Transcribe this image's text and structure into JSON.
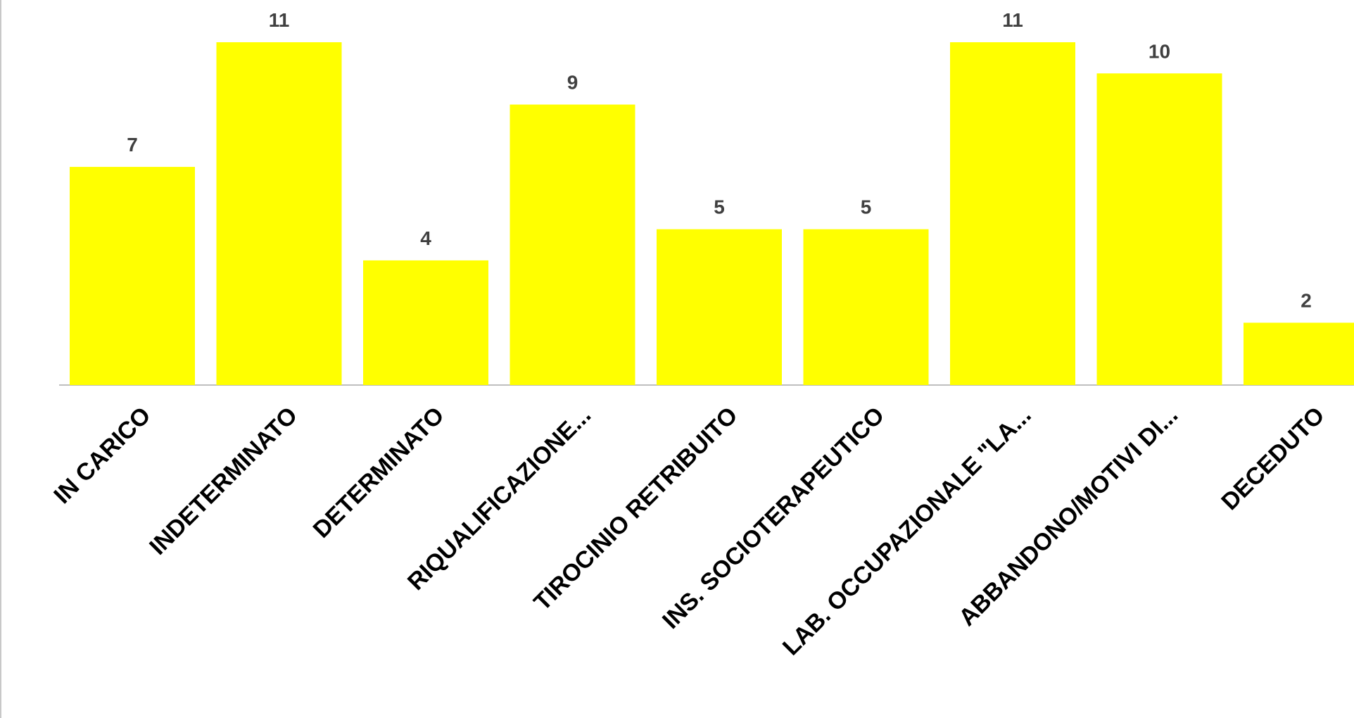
{
  "chart_data": {
    "type": "bar",
    "categories": [
      "IN CARICO",
      "INDETERMINATO",
      "DETERMINATO",
      "RIQUALIFICAZIONE...",
      "TIROCINIO RETRIBUITO",
      "INS. SOCIOTERAPEUTICO",
      "LAB. OCCUPAZIONALE \"LA...",
      "ABBANDONO/MOTIVI DI...",
      "DECEDUTO"
    ],
    "values": [
      7,
      11,
      4,
      9,
      5,
      5,
      11,
      10,
      2
    ],
    "title": "",
    "xlabel": "",
    "ylabel": "",
    "ylim": [
      0,
      11
    ],
    "grid": false,
    "legend": "none",
    "colors": {
      "bar": "#ffff00",
      "axis": "#bfbfbf",
      "value_label": "#404040",
      "category_label": "#000000"
    }
  }
}
